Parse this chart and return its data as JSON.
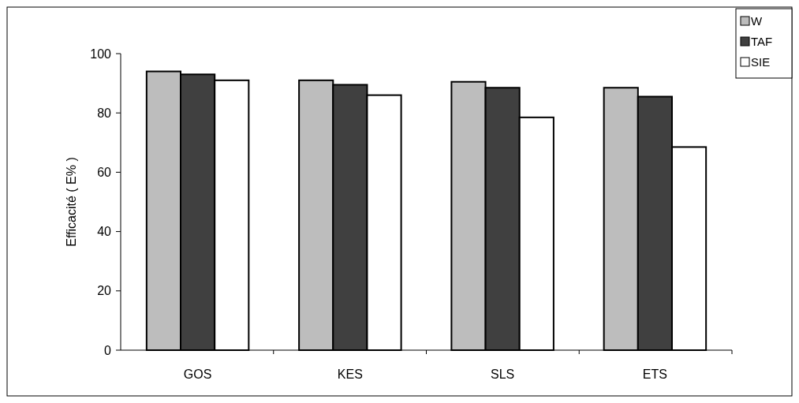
{
  "chart_data": {
    "type": "bar",
    "ylabel": "Efficacité ( E% )",
    "categories": [
      "GOS",
      "KES",
      "SLS",
      "ETS"
    ],
    "series": [
      {
        "name": "W",
        "color": "#bdbdbd",
        "values": [
          94,
          91,
          90.5,
          88.5
        ]
      },
      {
        "name": "TAF",
        "color": "#404040",
        "values": [
          93,
          89.5,
          88.5,
          85.5
        ]
      },
      {
        "name": "SIE",
        "color": "#ffffff",
        "values": [
          91,
          86,
          78.5,
          68.5
        ]
      }
    ],
    "ylim": [
      0,
      100
    ],
    "yticks": [
      0,
      20,
      40,
      60,
      80,
      100
    ],
    "legend": "top right"
  }
}
